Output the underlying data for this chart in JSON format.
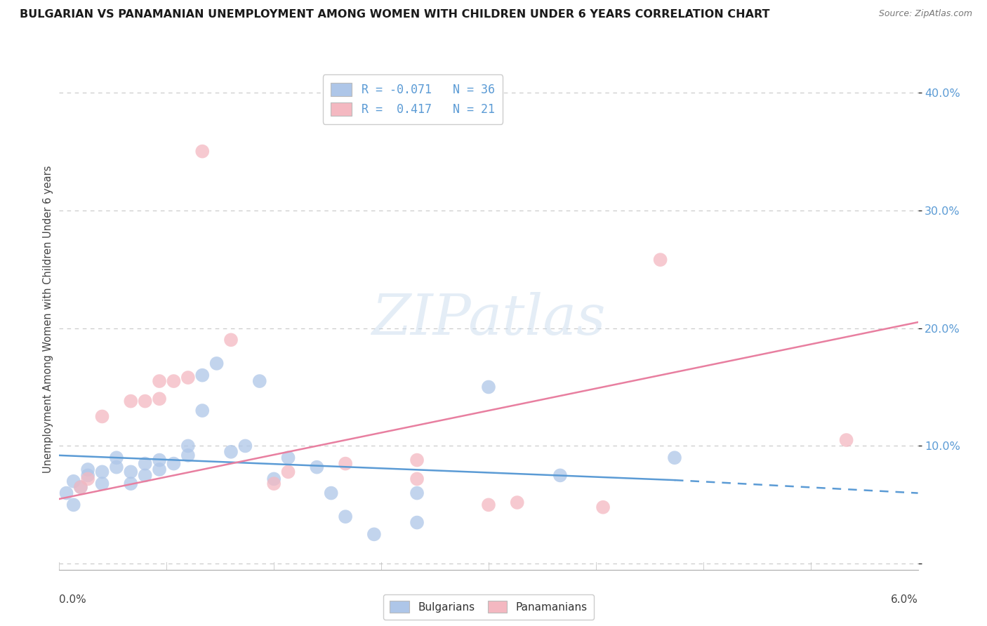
{
  "title": "BULGARIAN VS PANAMANIAN UNEMPLOYMENT AMONG WOMEN WITH CHILDREN UNDER 6 YEARS CORRELATION CHART",
  "source": "Source: ZipAtlas.com",
  "ylabel": "Unemployment Among Women with Children Under 6 years",
  "xlim": [
    0.0,
    0.06
  ],
  "ylim": [
    -0.005,
    0.42
  ],
  "yticks": [
    0.0,
    0.1,
    0.2,
    0.3,
    0.4
  ],
  "ytick_labels": [
    "",
    "10.0%",
    "20.0%",
    "30.0%",
    "40.0%"
  ],
  "blue_scatter_x": [
    0.0005,
    0.001,
    0.001,
    0.0015,
    0.002,
    0.002,
    0.003,
    0.003,
    0.004,
    0.004,
    0.005,
    0.005,
    0.006,
    0.006,
    0.007,
    0.007,
    0.008,
    0.009,
    0.009,
    0.01,
    0.01,
    0.011,
    0.012,
    0.013,
    0.014,
    0.015,
    0.016,
    0.018,
    0.019,
    0.02,
    0.022,
    0.025,
    0.025,
    0.03,
    0.035,
    0.043
  ],
  "blue_scatter_y": [
    0.06,
    0.05,
    0.07,
    0.065,
    0.075,
    0.08,
    0.078,
    0.068,
    0.082,
    0.09,
    0.068,
    0.078,
    0.075,
    0.085,
    0.08,
    0.088,
    0.085,
    0.092,
    0.1,
    0.16,
    0.13,
    0.17,
    0.095,
    0.1,
    0.155,
    0.072,
    0.09,
    0.082,
    0.06,
    0.04,
    0.025,
    0.06,
    0.035,
    0.15,
    0.075,
    0.09
  ],
  "pink_scatter_x": [
    0.0015,
    0.002,
    0.003,
    0.005,
    0.006,
    0.007,
    0.007,
    0.008,
    0.009,
    0.01,
    0.012,
    0.015,
    0.016,
    0.02,
    0.025,
    0.025,
    0.03,
    0.032,
    0.038,
    0.042,
    0.055
  ],
  "pink_scatter_y": [
    0.065,
    0.072,
    0.125,
    0.138,
    0.138,
    0.14,
    0.155,
    0.155,
    0.158,
    0.35,
    0.19,
    0.068,
    0.078,
    0.085,
    0.088,
    0.072,
    0.05,
    0.052,
    0.048,
    0.258,
    0.105
  ],
  "blue_line_x0": 0.0,
  "blue_line_x1": 0.043,
  "blue_line_x2": 0.06,
  "blue_line_y0": 0.092,
  "blue_line_y1": 0.071,
  "blue_line_y2": 0.06,
  "pink_line_x0": 0.0,
  "pink_line_x1": 0.06,
  "pink_line_y0": 0.055,
  "pink_line_y1": 0.205,
  "blue_scatter_color": "#aec6e8",
  "pink_scatter_color": "#f4b8c1",
  "blue_line_color": "#5b9bd5",
  "pink_line_color": "#e87fa0",
  "watermark_text": "ZIPatlas",
  "background_color": "#ffffff",
  "grid_color": "#c8c8c8",
  "legend1_label_blue": "R = -0.071   N = 36",
  "legend1_label_pink": "R =  0.417   N = 21",
  "legend2_label_blue": "Bulgarians",
  "legend2_label_pink": "Panamanians"
}
